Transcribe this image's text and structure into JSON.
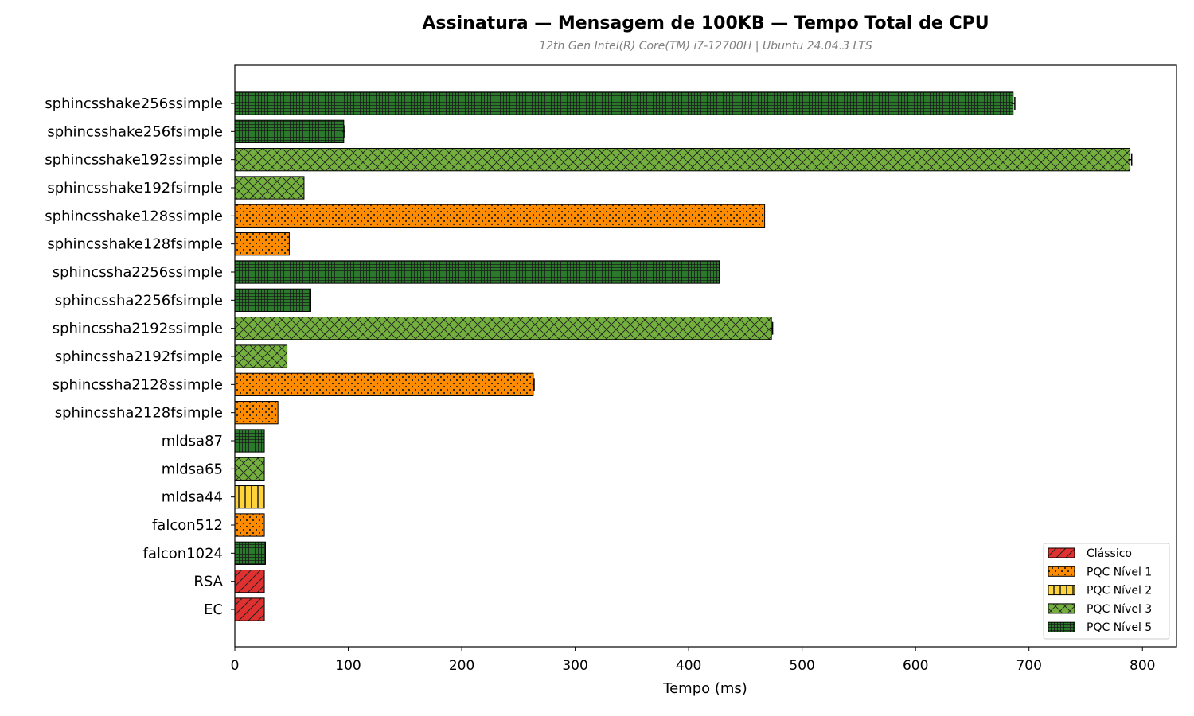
{
  "chart_data": {
    "type": "bar",
    "orientation": "horizontal",
    "title": "Assinatura — Mensagem de 100KB — Tempo Total de CPU",
    "subtitle": "12th Gen Intel(R) Core(TM) i7-12700H | Ubuntu 24.04.3 LTS",
    "xlabel": "Tempo (ms)",
    "ylabel": "",
    "xlim": [
      0,
      830
    ],
    "xticks": [
      0,
      100,
      200,
      300,
      400,
      500,
      600,
      700,
      800
    ],
    "grid": false,
    "legend_position": "bottom-right",
    "categories": [
      "sphincsshake256ssimple",
      "sphincsshake256fsimple",
      "sphincsshake192ssimple",
      "sphincsshake192fsimple",
      "sphincsshake128ssimple",
      "sphincsshake128fsimple",
      "sphincssha2256ssimple",
      "sphincssha2256fsimple",
      "sphincssha2192ssimple",
      "sphincssha2192fsimple",
      "sphincssha2128ssimple",
      "sphincssha2128fsimple",
      "mldsa87",
      "mldsa65",
      "mldsa44",
      "falcon512",
      "falcon1024",
      "RSA",
      "EC"
    ],
    "values": [
      686,
      96,
      789,
      61,
      467,
      48,
      427,
      67,
      473,
      46,
      263,
      38,
      26,
      26,
      26,
      26,
      27,
      26,
      26
    ],
    "errors": [
      1.5,
      1.0,
      1.5,
      0,
      0,
      0,
      0,
      0,
      1.0,
      0,
      0.8,
      0,
      0,
      0,
      0,
      0,
      0,
      0,
      0
    ],
    "groups": [
      "n5",
      "n5",
      "n3",
      "n3",
      "n1",
      "n1",
      "n5",
      "n5",
      "n3",
      "n3",
      "n1",
      "n1",
      "n5",
      "n3",
      "n2",
      "n1",
      "n5",
      "c",
      "c"
    ],
    "legend": [
      {
        "key": "c",
        "label": "Clássico",
        "color": "#e03131",
        "pattern": "diagonal"
      },
      {
        "key": "n1",
        "label": "PQC Nível 1",
        "color": "#ff8c00",
        "pattern": "dots"
      },
      {
        "key": "n2",
        "label": "PQC Nível 2",
        "color": "#ffd43b",
        "pattern": "vertical"
      },
      {
        "key": "n3",
        "label": "PQC Nível 3",
        "color": "#74b03d",
        "pattern": "crosshatch"
      },
      {
        "key": "n5",
        "label": "PQC Nível 5",
        "color": "#2b7a2b",
        "pattern": "grid"
      }
    ]
  }
}
